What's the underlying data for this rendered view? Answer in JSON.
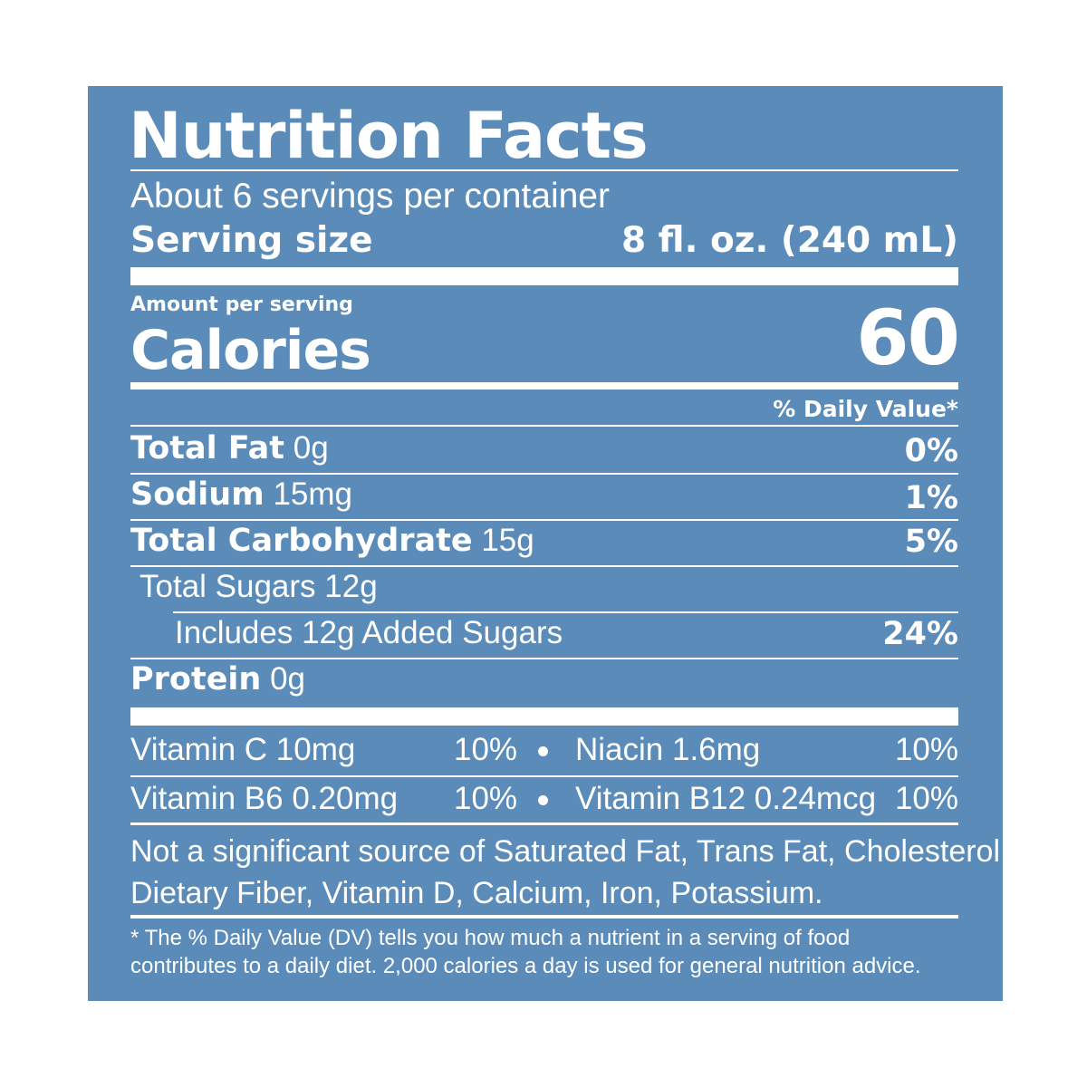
{
  "label": {
    "title": "Nutrition Facts",
    "servings_per_container": "About 6 servings per container",
    "serving_size_label": "Serving size",
    "serving_size_value": "8 fl. oz. (240 mL)",
    "amount_per_serving": "Amount per serving",
    "calories_label": "Calories",
    "calories_value": "60",
    "daily_value_header": "% Daily Value*",
    "nutrients": [
      {
        "name": "Total Fat",
        "amount": "0g",
        "dv": "0%"
      },
      {
        "name": "Sodium",
        "amount": "15mg",
        "dv": "1%"
      },
      {
        "name": "Total Carbohydrate",
        "amount": "15g",
        "dv": "5%"
      },
      {
        "name": "Total Sugars 12g",
        "amount": "",
        "dv": ""
      },
      {
        "name": "Includes 12g Added Sugars",
        "amount": "",
        "dv": "24%"
      },
      {
        "name": "Protein",
        "amount": "0g",
        "dv": ""
      }
    ],
    "vitamins": [
      {
        "left_name": "Vitamin C 10mg",
        "left_dv": "10%",
        "right_name": "Niacin 1.6mg",
        "right_dv": "10%"
      },
      {
        "left_name": "Vitamin B6 0.20mg",
        "left_dv": "10%",
        "right_name": "Vitamin B12 0.24mcg",
        "right_dv": "10%"
      }
    ],
    "not_significant": [
      "Not a significant source of Saturated Fat, Trans Fat, Cholesterol,",
      "Dietary Fiber, Vitamin D, Calcium, Iron, Potassium."
    ],
    "footnote": [
      "* The % Daily Value (DV) tells you how much a nutrient in a serving of food",
      "contributes to a daily diet. 2,000 calories a day is used for general nutrition advice."
    ]
  },
  "colors": {
    "panel_background": "#5b8bb8",
    "text": "#ffffff",
    "page_background": "#ffffff"
  }
}
